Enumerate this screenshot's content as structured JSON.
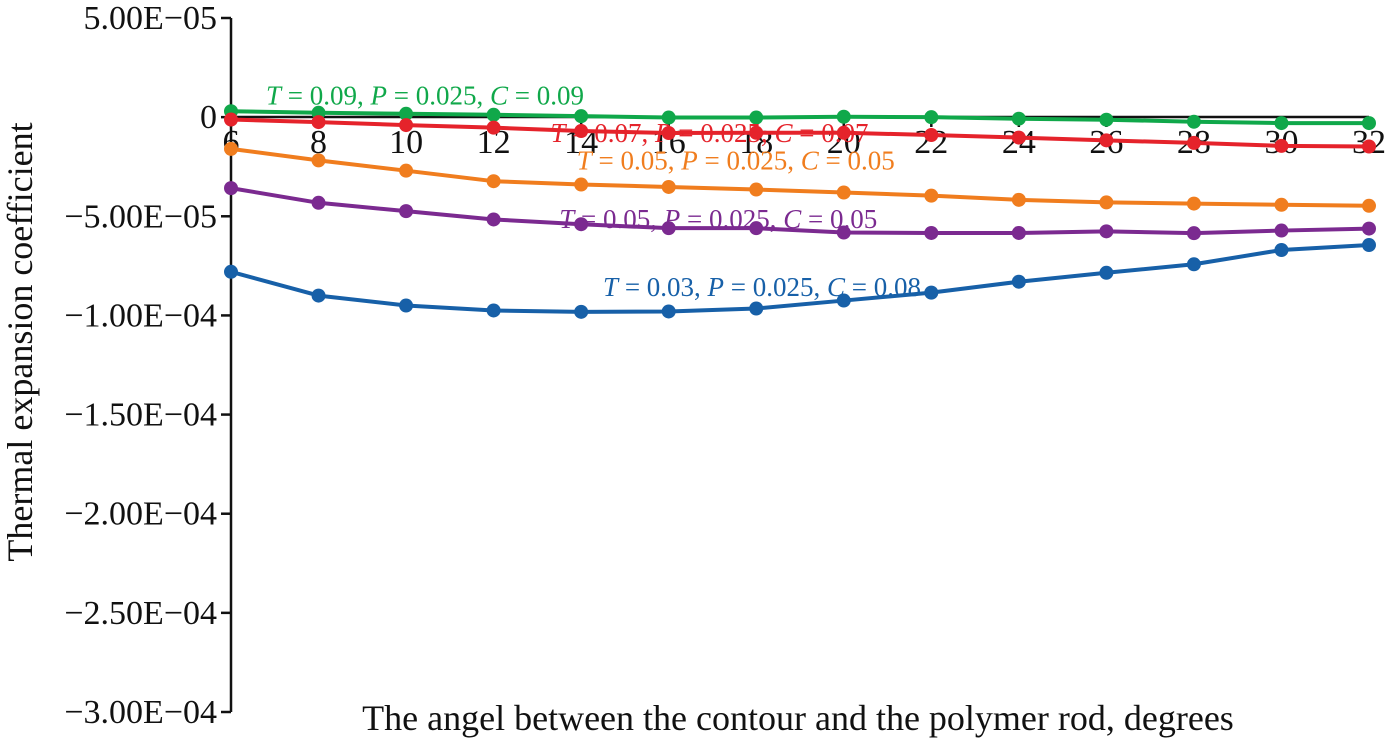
{
  "chart_data": {
    "type": "line",
    "xlabel": "The angel between the contour and the polymer rod, degrees",
    "ylabel": "Thermal expansion coefficient",
    "x": [
      6,
      8,
      10,
      12,
      14,
      16,
      18,
      20,
      22,
      24,
      26,
      28,
      30,
      32
    ],
    "xlim": [
      6,
      32
    ],
    "ylim": [
      -0.0003,
      5e-05
    ],
    "x_ticks": [
      6,
      8,
      10,
      12,
      14,
      16,
      18,
      20,
      22,
      24,
      26,
      28,
      30,
      32
    ],
    "x_tick_labels": [
      "6",
      "8",
      "10",
      "12",
      "14",
      "16",
      "18",
      "20",
      "22",
      "24",
      "26",
      "28",
      "30",
      "32"
    ],
    "y_ticks": [
      5e-05,
      0,
      -5e-05,
      -0.0001,
      -0.00015,
      -0.0002,
      -0.00025,
      -0.0003
    ],
    "y_tick_labels": [
      "5.00E−05",
      "0",
      "−5.00E−05",
      "−1.00E−04",
      "−1.50E−04",
      "−2.00E−04",
      "−2.50E−04",
      "−3.00E−04"
    ],
    "grid": false,
    "legend": "none",
    "series": [
      {
        "label": "T = 0.09, P = 0.025, C = 0.09",
        "color": "#10a84a",
        "label_at": [
          6.8,
          6.5e-06
        ],
        "values": [
          3e-06,
          2.2e-06,
          1.7e-06,
          1.2e-06,
          5e-07,
          -2e-07,
          -2e-07,
          2e-07,
          0.0,
          -8e-07,
          -1.3e-06,
          -2.3e-06,
          -3e-06,
          -3e-06
        ]
      },
      {
        "label": "T = 0.07, P = 0.025, C = 0.07",
        "color": "#e5232b",
        "label_at": [
          13.3,
          -1.25e-05
        ],
        "values": [
          -1.2e-06,
          -2.5e-06,
          -4e-06,
          -5.3e-06,
          -7e-06,
          -8e-06,
          -7.9e-06,
          -7.9e-06,
          -9e-06,
          -1.03e-05,
          -1.17e-05,
          -1.3e-05,
          -1.45e-05,
          -1.48e-05
        ]
      },
      {
        "label": "T = 0.05, P = 0.025, C = 0.05",
        "color": "#f07d1e",
        "label_at": [
          13.9,
          -2.65e-05
        ],
        "values": [
          -1.6e-05,
          -2.18e-05,
          -2.7e-05,
          -3.23e-05,
          -3.4e-05,
          -3.52e-05,
          -3.65e-05,
          -3.8e-05,
          -3.96e-05,
          -4.17e-05,
          -4.3e-05,
          -4.36e-05,
          -4.42e-05,
          -4.47e-05
        ]
      },
      {
        "label": "T = 0.05, P = 0.025, C = 0.05",
        "color": "#7b2a90",
        "label_at": [
          13.5,
          -5.6e-05
        ],
        "values": [
          -3.58e-05,
          -4.32e-05,
          -4.74e-05,
          -5.16e-05,
          -5.4e-05,
          -5.6e-05,
          -5.6e-05,
          -5.82e-05,
          -5.84e-05,
          -5.84e-05,
          -5.76e-05,
          -5.85e-05,
          -5.72e-05,
          -5.62e-05
        ]
      },
      {
        "label": "T = 0.03, P = 0.025, C = 0.08",
        "color": "#1760a8",
        "label_at": [
          14.5,
          -9.02e-05
        ],
        "values": [
          -7.8e-05,
          -9e-05,
          -9.5e-05,
          -9.75e-05,
          -9.82e-05,
          -9.8e-05,
          -9.65e-05,
          -9.25e-05,
          -8.85e-05,
          -8.3e-05,
          -7.85e-05,
          -7.42e-05,
          -6.7e-05,
          -6.45e-05
        ]
      }
    ]
  }
}
